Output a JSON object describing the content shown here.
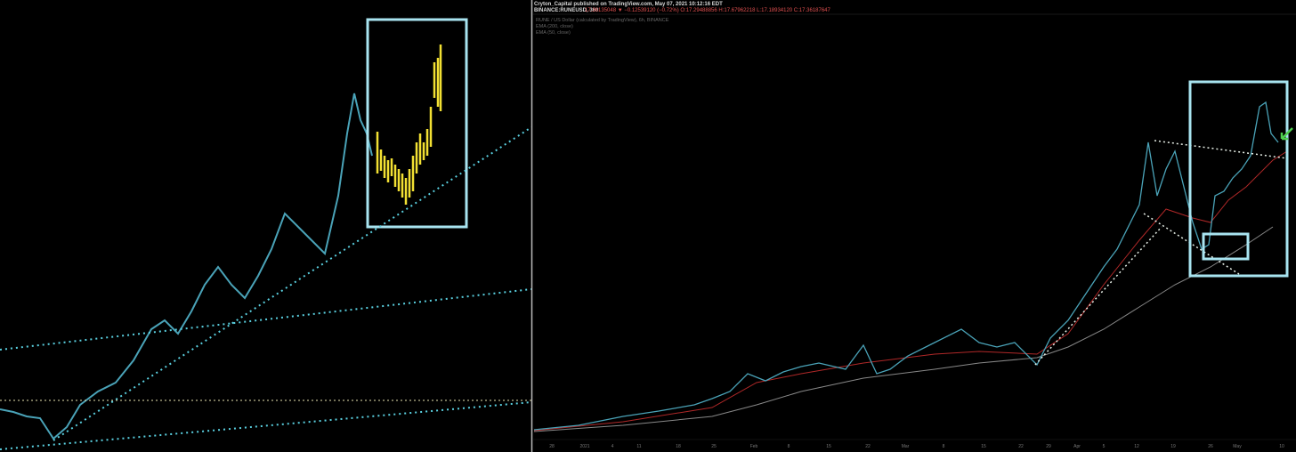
{
  "header": {
    "published": "Cryton_Capital published on TradingView.com, May 07, 2021 10:12:16 EDT",
    "symbol": "BINANCE:RUNEUSD, 360",
    "quote": "17.36135048 ▼ −0.12539120 (−0.72%) O:17.29488856 H:17.67962218 L:17.18934120 C:17.36187647"
  },
  "legend": [
    "RUNE / US Dollar (calculated by TradingView), 6h, BINANCE",
    "EMA (200, close)",
    "EMA (50, close)"
  ],
  "x_axis_labels": [
    "28",
    "2021",
    "4",
    "11",
    "18",
    "25",
    "Feb",
    "8",
    "15",
    "22",
    "Mar",
    "8",
    "15",
    "22",
    "29",
    "Apr",
    "5",
    "12",
    "19",
    "26",
    "May",
    "10"
  ]
}
